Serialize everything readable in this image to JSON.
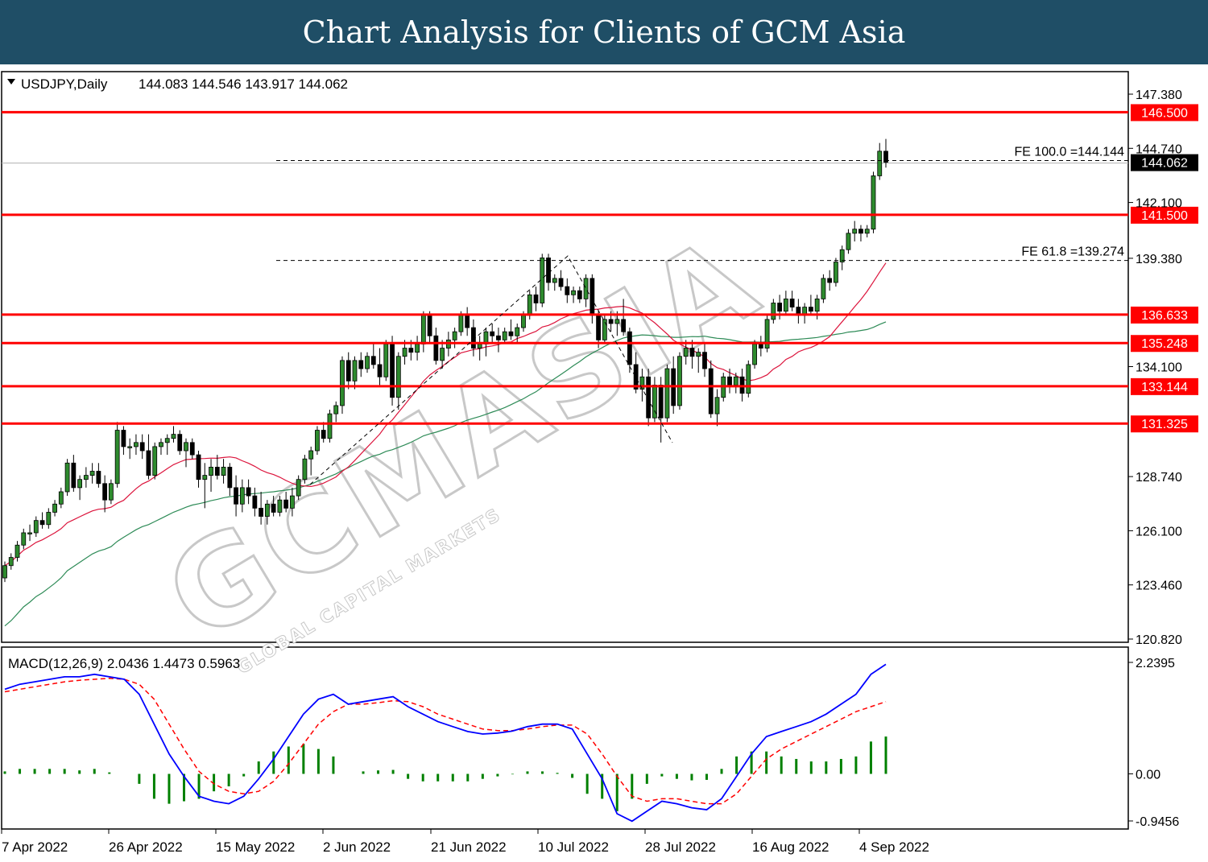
{
  "header": {
    "title": "Chart Analysis for Clients of GCM Asia"
  },
  "symbol_label": "USDJPY,Daily",
  "ohlc_label": "144.083 144.546 143.917 144.062",
  "watermark": {
    "main": "GCMASIA",
    "sub": "GLOBAL CAPITAL MARKETS"
  },
  "colors": {
    "resistance": "#ff0000",
    "bull_candle": "#2e8b2e",
    "ma_fast": "#dc143c",
    "ma_slow": "#2e8b57",
    "macd_line": "#0000ff",
    "signal_line": "#ff0000",
    "histogram": "#008000",
    "header_bg": "#1f4e66"
  },
  "chart_data": [
    {
      "type": "candlestick",
      "symbol": "USDJPY",
      "timeframe": "Daily",
      "last": {
        "open": 144.083,
        "high": 144.546,
        "low": 143.917,
        "close": 144.062
      },
      "ylim": [
        120.82,
        148.5
      ],
      "y_ticks": [
        147.38,
        144.74,
        142.1,
        139.38,
        134.1,
        128.74,
        126.1,
        123.46,
        120.82
      ],
      "y_tick_labels": [
        "147.380",
        "144.740",
        "142.100",
        "139.380",
        "134.100",
        "128.740",
        "126.100",
        "123.460",
        "120.820"
      ],
      "current_price": {
        "value": 144.062,
        "label": "144.062"
      },
      "levels": [
        {
          "value": 146.5,
          "label": "146.500"
        },
        {
          "value": 141.5,
          "label": "141.500"
        },
        {
          "value": 136.633,
          "label": "136.633"
        },
        {
          "value": 135.248,
          "label": "135.248"
        },
        {
          "value": 133.144,
          "label": "133.144"
        },
        {
          "value": 131.325,
          "label": "131.325"
        }
      ],
      "fibo_levels": [
        {
          "value": 144.144,
          "label": "FE 100.0 =144.144"
        },
        {
          "value": 139.274,
          "label": "FE 61.8 =139.274"
        }
      ],
      "x_tick_labels": [
        "7 Apr 2022",
        "26 Apr 2022",
        "15 May 2022",
        "2 Jun 2022",
        "21 Jun 2022",
        "10 Jul 2022",
        "28 Jul 2022",
        "16 Aug 2022",
        "4 Sep 2022"
      ],
      "candles_approx": [
        [
          123.8,
          124.6,
          123.6,
          124.4
        ],
        [
          124.4,
          125.0,
          124.2,
          124.8
        ],
        [
          124.8,
          125.6,
          124.6,
          125.4
        ],
        [
          125.4,
          126.2,
          125.2,
          126.0
        ],
        [
          126.0,
          126.4,
          125.6,
          126.0
        ],
        [
          126.0,
          126.8,
          125.8,
          126.6
        ],
        [
          126.6,
          127.0,
          126.2,
          126.4
        ],
        [
          126.4,
          127.2,
          126.2,
          127.0
        ],
        [
          127.0,
          127.6,
          126.8,
          127.4
        ],
        [
          127.4,
          128.2,
          127.2,
          128.0
        ],
        [
          128.0,
          129.6,
          127.8,
          129.4
        ],
        [
          129.4,
          129.8,
          128.0,
          128.2
        ],
        [
          128.2,
          128.8,
          127.6,
          128.6
        ],
        [
          128.6,
          129.2,
          128.2,
          128.8
        ],
        [
          128.8,
          129.4,
          128.4,
          129.0
        ],
        [
          129.0,
          129.4,
          128.2,
          128.4
        ],
        [
          128.4,
          128.8,
          127.0,
          127.6
        ],
        [
          127.6,
          128.6,
          127.4,
          128.4
        ],
        [
          128.4,
          131.4,
          128.2,
          131.0
        ],
        [
          131.0,
          131.2,
          129.8,
          130.2
        ],
        [
          130.2,
          130.6,
          129.6,
          130.2
        ],
        [
          130.2,
          130.8,
          129.8,
          130.4
        ],
        [
          130.4,
          130.8,
          129.6,
          130.0
        ],
        [
          130.0,
          130.8,
          128.6,
          128.8
        ],
        [
          128.8,
          130.4,
          128.6,
          130.2
        ],
        [
          130.2,
          130.6,
          129.8,
          130.4
        ],
        [
          130.4,
          130.8,
          129.8,
          130.6
        ],
        [
          130.6,
          131.2,
          130.4,
          130.8
        ],
        [
          130.8,
          131.0,
          129.8,
          130.0
        ],
        [
          130.0,
          130.6,
          129.2,
          130.4
        ],
        [
          130.4,
          130.6,
          129.6,
          129.8
        ],
        [
          129.8,
          130.0,
          128.2,
          128.6
        ],
        [
          128.6,
          129.4,
          127.2,
          128.8
        ],
        [
          128.8,
          129.6,
          128.0,
          129.2
        ],
        [
          129.2,
          129.8,
          128.6,
          128.8
        ],
        [
          128.8,
          129.6,
          128.4,
          129.2
        ],
        [
          129.2,
          129.4,
          127.8,
          128.2
        ],
        [
          128.2,
          128.8,
          126.8,
          127.4
        ],
        [
          127.4,
          128.6,
          127.0,
          128.2
        ],
        [
          128.2,
          128.6,
          127.4,
          127.8
        ],
        [
          127.8,
          128.2,
          126.8,
          127.2
        ],
        [
          127.2,
          128.0,
          126.4,
          126.8
        ],
        [
          126.8,
          127.6,
          126.4,
          127.4
        ],
        [
          127.4,
          127.8,
          126.8,
          127.0
        ],
        [
          127.0,
          127.8,
          126.8,
          127.6
        ],
        [
          127.6,
          128.0,
          127.0,
          127.2
        ],
        [
          127.2,
          128.2,
          126.8,
          127.8
        ],
        [
          127.8,
          128.8,
          127.6,
          128.6
        ],
        [
          128.6,
          129.8,
          128.4,
          129.6
        ],
        [
          129.6,
          130.2,
          128.8,
          130.0
        ],
        [
          130.0,
          131.2,
          129.8,
          131.0
        ],
        [
          131.0,
          131.4,
          130.4,
          130.6
        ],
        [
          130.6,
          132.0,
          130.4,
          131.8
        ],
        [
          131.8,
          132.4,
          131.4,
          132.2
        ],
        [
          132.2,
          134.6,
          131.8,
          134.4
        ],
        [
          134.4,
          134.8,
          133.0,
          133.4
        ],
        [
          133.4,
          134.6,
          133.0,
          134.4
        ],
        [
          134.4,
          134.8,
          133.6,
          134.0
        ],
        [
          134.0,
          134.8,
          133.8,
          134.6
        ],
        [
          134.6,
          135.2,
          134.0,
          134.2
        ],
        [
          134.2,
          135.0,
          133.2,
          133.6
        ],
        [
          133.6,
          135.4,
          133.4,
          135.2
        ],
        [
          135.2,
          135.6,
          132.2,
          132.6
        ],
        [
          132.6,
          134.8,
          132.0,
          134.6
        ],
        [
          134.6,
          135.4,
          134.2,
          135.0
        ],
        [
          135.0,
          135.4,
          134.4,
          134.8
        ],
        [
          134.8,
          135.6,
          134.4,
          135.2
        ],
        [
          135.2,
          136.8,
          134.8,
          136.6
        ],
        [
          136.6,
          136.8,
          135.2,
          135.6
        ],
        [
          135.6,
          136.0,
          134.2,
          134.4
        ],
        [
          134.4,
          135.4,
          134.0,
          135.0
        ],
        [
          135.0,
          135.8,
          134.6,
          135.4
        ],
        [
          135.4,
          136.0,
          135.0,
          135.8
        ],
        [
          135.8,
          136.8,
          135.6,
          136.6
        ],
        [
          136.6,
          137.0,
          135.6,
          136.0
        ],
        [
          136.0,
          136.4,
          134.6,
          135.0
        ],
        [
          135.0,
          135.6,
          134.4,
          135.2
        ],
        [
          135.2,
          136.0,
          134.6,
          135.8
        ],
        [
          135.8,
          136.2,
          135.2,
          135.6
        ],
        [
          135.6,
          136.0,
          134.8,
          135.4
        ],
        [
          135.4,
          136.0,
          135.2,
          135.8
        ],
        [
          135.8,
          136.4,
          135.4,
          135.6
        ],
        [
          135.6,
          136.2,
          135.2,
          136.0
        ],
        [
          136.0,
          136.8,
          135.8,
          136.6
        ],
        [
          136.6,
          137.8,
          136.4,
          137.6
        ],
        [
          137.6,
          138.0,
          136.8,
          137.2
        ],
        [
          137.2,
          139.6,
          137.0,
          139.4
        ],
        [
          139.4,
          139.6,
          137.8,
          138.2
        ],
        [
          138.2,
          138.6,
          137.8,
          138.4
        ],
        [
          138.4,
          138.8,
          137.8,
          138.0
        ],
        [
          138.0,
          138.4,
          137.2,
          137.6
        ],
        [
          137.6,
          138.0,
          137.2,
          137.8
        ],
        [
          137.8,
          138.0,
          137.2,
          137.4
        ],
        [
          137.4,
          138.6,
          137.0,
          138.4
        ],
        [
          138.4,
          138.6,
          136.2,
          136.6
        ],
        [
          136.6,
          136.8,
          135.0,
          135.4
        ],
        [
          135.4,
          136.6,
          135.2,
          136.4
        ],
        [
          136.4,
          136.8,
          135.8,
          136.2
        ],
        [
          136.2,
          136.8,
          135.6,
          136.4
        ],
        [
          136.4,
          137.4,
          135.6,
          135.8
        ],
        [
          135.8,
          136.0,
          133.8,
          134.2
        ],
        [
          134.2,
          134.8,
          132.8,
          133.0
        ],
        [
          133.0,
          134.0,
          132.4,
          133.6
        ],
        [
          133.6,
          134.0,
          131.2,
          131.6
        ],
        [
          131.6,
          133.6,
          131.4,
          133.2
        ],
        [
          133.2,
          133.6,
          130.4,
          131.6
        ],
        [
          131.6,
          134.2,
          131.4,
          134.0
        ],
        [
          134.0,
          134.6,
          131.8,
          132.2
        ],
        [
          132.2,
          134.8,
          132.0,
          134.6
        ],
        [
          134.6,
          135.4,
          134.2,
          135.0
        ],
        [
          135.0,
          135.4,
          134.0,
          134.6
        ],
        [
          134.6,
          135.0,
          133.8,
          134.8
        ],
        [
          134.8,
          135.2,
          133.6,
          134.0
        ],
        [
          134.0,
          134.4,
          131.6,
          131.8
        ],
        [
          131.8,
          133.0,
          131.2,
          132.6
        ],
        [
          132.6,
          133.8,
          132.4,
          133.6
        ],
        [
          133.6,
          134.0,
          132.8,
          133.2
        ],
        [
          133.2,
          133.8,
          132.8,
          133.6
        ],
        [
          133.6,
          134.0,
          132.4,
          132.8
        ],
        [
          132.8,
          134.4,
          132.6,
          134.2
        ],
        [
          134.2,
          135.4,
          134.0,
          135.2
        ],
        [
          135.2,
          135.6,
          134.6,
          135.0
        ],
        [
          135.0,
          136.6,
          134.8,
          136.4
        ],
        [
          136.4,
          137.4,
          136.2,
          137.2
        ],
        [
          137.2,
          137.6,
          136.4,
          136.8
        ],
        [
          136.8,
          137.8,
          136.6,
          137.4
        ],
        [
          137.4,
          137.8,
          136.8,
          137.0
        ],
        [
          137.0,
          137.4,
          136.2,
          136.6
        ],
        [
          136.6,
          137.2,
          136.2,
          137.0
        ],
        [
          137.0,
          137.6,
          136.6,
          136.8
        ],
        [
          136.8,
          137.6,
          136.4,
          137.4
        ],
        [
          137.4,
          138.6,
          137.2,
          138.4
        ],
        [
          138.4,
          138.8,
          137.8,
          138.2
        ],
        [
          138.2,
          139.4,
          138.0,
          139.2
        ],
        [
          139.2,
          140.0,
          138.8,
          139.8
        ],
        [
          139.8,
          140.8,
          139.6,
          140.6
        ],
        [
          140.6,
          141.2,
          140.2,
          140.8
        ],
        [
          140.8,
          141.0,
          140.2,
          140.6
        ],
        [
          140.6,
          141.0,
          140.4,
          140.8
        ],
        [
          140.8,
          143.6,
          140.6,
          143.4
        ],
        [
          143.4,
          145.0,
          143.2,
          144.6
        ],
        [
          144.6,
          145.2,
          143.8,
          144.062
        ]
      ]
    },
    {
      "type": "line",
      "title": "MACD(12,26,9) 2.0436 1.4473 0.5963",
      "values": {
        "macd": 2.0436,
        "signal": 1.4473,
        "histogram": 0.5963
      },
      "ylim": [
        -1.1,
        2.5
      ],
      "y_ticks": [
        2.2395,
        0.0,
        -0.9456
      ],
      "y_tick_labels": [
        "2.2395",
        "0.00",
        "-0.9456"
      ],
      "macd_approx": [
        1.7,
        1.8,
        1.85,
        1.9,
        1.95,
        1.95,
        2.0,
        1.95,
        1.9,
        1.6,
        1.0,
        0.4,
        -0.05,
        -0.45,
        -0.55,
        -0.6,
        -0.45,
        -0.1,
        0.3,
        0.75,
        1.2,
        1.5,
        1.6,
        1.4,
        1.45,
        1.5,
        1.55,
        1.35,
        1.2,
        1.05,
        0.95,
        0.85,
        0.8,
        0.82,
        0.86,
        0.95,
        1.0,
        1.0,
        0.9,
        0.4,
        -0.1,
        -0.8,
        -0.95,
        -0.75,
        -0.55,
        -0.6,
        -0.68,
        -0.72,
        -0.5,
        -0.05,
        0.4,
        0.75,
        0.85,
        0.95,
        1.05,
        1.2,
        1.4,
        1.6,
        2.0,
        2.2
      ],
      "signal_approx": [
        1.65,
        1.7,
        1.75,
        1.8,
        1.85,
        1.88,
        1.9,
        1.92,
        1.9,
        1.8,
        1.5,
        1.0,
        0.5,
        0.05,
        -0.2,
        -0.35,
        -0.4,
        -0.35,
        -0.15,
        0.2,
        0.6,
        1.0,
        1.25,
        1.4,
        1.4,
        1.43,
        1.47,
        1.45,
        1.35,
        1.2,
        1.1,
        1.0,
        0.9,
        0.87,
        0.87,
        0.9,
        0.95,
        0.98,
        0.98,
        0.8,
        0.4,
        -0.05,
        -0.45,
        -0.55,
        -0.5,
        -0.5,
        -0.55,
        -0.6,
        -0.6,
        -0.4,
        -0.05,
        0.3,
        0.5,
        0.65,
        0.8,
        0.95,
        1.1,
        1.25,
        1.35,
        1.45
      ]
    }
  ]
}
